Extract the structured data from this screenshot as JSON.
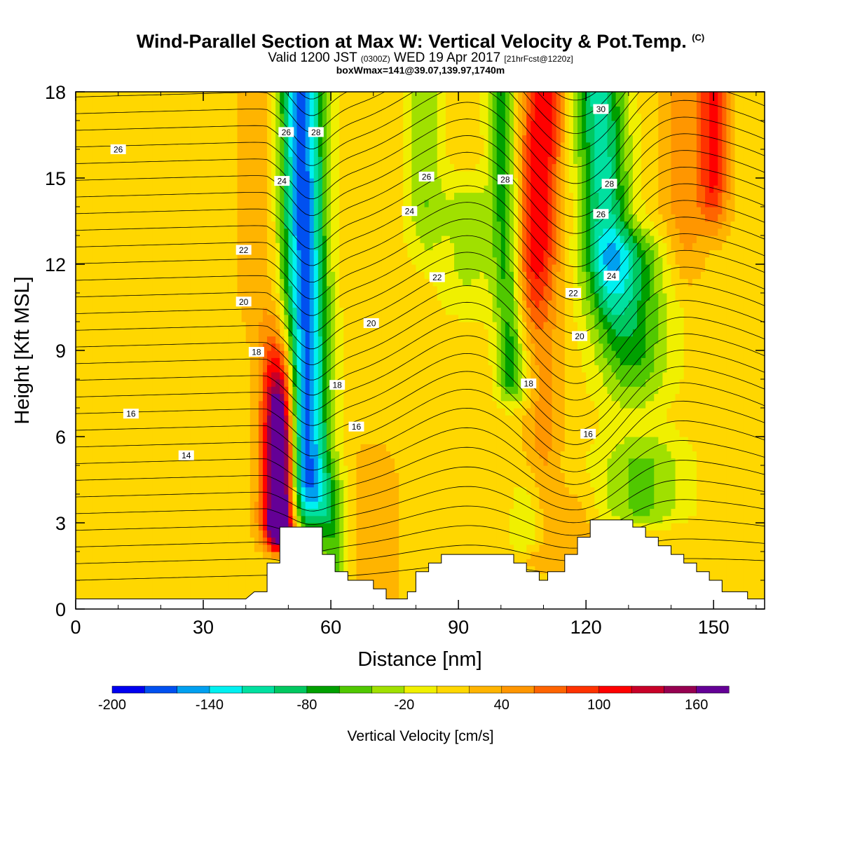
{
  "title": {
    "main": "Wind-Parallel Section at Max W: Vertical Velocity & Pot.Temp.",
    "main_mark": "(C)",
    "sub_a": "Valid 1200 JST",
    "sub_b": "(0300Z)",
    "sub_c": "WED 19 Apr 2017",
    "sub_d": "[21hrFcst@1220z]",
    "sub3": "boxWmax=141@39.07,139.97,1740m"
  },
  "chart_data": {
    "type": "heatmap",
    "xlabel": "Distance [nm]",
    "ylabel": "Height [Kft MSL]",
    "xlim": [
      0,
      162
    ],
    "ylim": [
      0,
      18
    ],
    "xticks": [
      0,
      30,
      60,
      90,
      120,
      150
    ],
    "yticks": [
      0,
      3,
      6,
      9,
      12,
      15,
      18
    ],
    "colorbar": {
      "label": "Vertical Velocity [cm/s]",
      "tick_labels": [
        -200,
        -140,
        -80,
        -20,
        40,
        100,
        160
      ],
      "min": -200,
      "max": 180,
      "step": 20,
      "colors": [
        "#0000f0",
        "#0050f0",
        "#00a0f0",
        "#00f0f0",
        "#00e0a0",
        "#00c860",
        "#00a000",
        "#50c800",
        "#a0e000",
        "#f0f000",
        "#ffd700",
        "#ffb400",
        "#ff9600",
        "#ff6400",
        "#ff3200",
        "#ff0000",
        "#c80028",
        "#960050",
        "#640096"
      ]
    },
    "velocity_features": [
      {
        "type": "downdraft",
        "x_center": 55,
        "x_halfwidth": 4,
        "x_at_top": 53,
        "min": -180
      },
      {
        "type": "updraft",
        "x_center": 48,
        "x_halfwidth": 2.5,
        "z_range": [
          2,
          9
        ],
        "max": 160
      },
      {
        "type": "updraft",
        "x_center": 111,
        "x_halfwidth": 4,
        "z_range": [
          9,
          18
        ],
        "max": 110
      },
      {
        "type": "downdraft",
        "x_center": 124,
        "x_halfwidth": 5,
        "z_range": [
          9,
          18
        ],
        "min": -120
      },
      {
        "type": "downdraft",
        "x_center": 101,
        "x_halfwidth": 2.5,
        "z_range": [
          7,
          18
        ],
        "min": -80
      },
      {
        "type": "updraft",
        "x_center": 150,
        "x_halfwidth": 3,
        "z_range": [
          12,
          18
        ],
        "max": 90
      }
    ],
    "theta_contours": {
      "levels": [
        14,
        16,
        18,
        20,
        22,
        24,
        26,
        28,
        30
      ],
      "labels": [
        {
          "text": "26",
          "x": 10,
          "y": 16.0
        },
        {
          "text": "24",
          "x": 48.5,
          "y": 14.9
        },
        {
          "text": "22",
          "x": 39.5,
          "y": 12.5
        },
        {
          "text": "20",
          "x": 39.5,
          "y": 10.7
        },
        {
          "text": "18",
          "x": 42.5,
          "y": 8.95
        },
        {
          "text": "16",
          "x": 13,
          "y": 6.8
        },
        {
          "text": "14",
          "x": 26,
          "y": 5.35
        },
        {
          "text": "26",
          "x": 49.5,
          "y": 16.6
        },
        {
          "text": "28",
          "x": 56.5,
          "y": 16.6
        },
        {
          "text": "26",
          "x": 82.5,
          "y": 15.05
        },
        {
          "text": "24",
          "x": 78.5,
          "y": 13.85
        },
        {
          "text": "22",
          "x": 85,
          "y": 11.55
        },
        {
          "text": "20",
          "x": 69.5,
          "y": 9.95
        },
        {
          "text": "18",
          "x": 61.5,
          "y": 7.8
        },
        {
          "text": "16",
          "x": 66,
          "y": 6.35
        },
        {
          "text": "28",
          "x": 101,
          "y": 14.95
        },
        {
          "text": "22",
          "x": 117,
          "y": 11.0
        },
        {
          "text": "20",
          "x": 118.5,
          "y": 9.5
        },
        {
          "text": "18",
          "x": 106.5,
          "y": 7.85
        },
        {
          "text": "16",
          "x": 120.5,
          "y": 6.1
        },
        {
          "text": "30",
          "x": 123.5,
          "y": 17.4
        },
        {
          "text": "28",
          "x": 125.5,
          "y": 14.8
        },
        {
          "text": "26",
          "x": 123.5,
          "y": 13.75
        },
        {
          "text": "24",
          "x": 126,
          "y": 11.6
        }
      ]
    },
    "terrain": [
      [
        0,
        0.35
      ],
      [
        40,
        0.35
      ],
      [
        42,
        0.6
      ],
      [
        45,
        0.6
      ],
      [
        45,
        1.6
      ],
      [
        48,
        1.6
      ],
      [
        48,
        2.85
      ],
      [
        58,
        2.85
      ],
      [
        58,
        1.9
      ],
      [
        61,
        1.9
      ],
      [
        61,
        1.3
      ],
      [
        64,
        1.3
      ],
      [
        64,
        1.0
      ],
      [
        70,
        1.0
      ],
      [
        70,
        0.7
      ],
      [
        73,
        0.7
      ],
      [
        73,
        0.35
      ],
      [
        78,
        0.35
      ],
      [
        78,
        0.6
      ],
      [
        80,
        0.6
      ],
      [
        80,
        1.3
      ],
      [
        83,
        1.3
      ],
      [
        83,
        1.6
      ],
      [
        86,
        1.6
      ],
      [
        86,
        1.9
      ],
      [
        103,
        1.9
      ],
      [
        103,
        1.6
      ],
      [
        106,
        1.6
      ],
      [
        106,
        1.3
      ],
      [
        109,
        1.3
      ],
      [
        109,
        1.0
      ],
      [
        111,
        1.0
      ],
      [
        111,
        1.3
      ],
      [
        115,
        1.3
      ],
      [
        115,
        1.9
      ],
      [
        118,
        1.9
      ],
      [
        118,
        2.5
      ],
      [
        121,
        2.5
      ],
      [
        121,
        3.1
      ],
      [
        131,
        3.1
      ],
      [
        131,
        2.85
      ],
      [
        134,
        2.85
      ],
      [
        134,
        2.5
      ],
      [
        137,
        2.5
      ],
      [
        137,
        2.2
      ],
      [
        140,
        2.2
      ],
      [
        140,
        1.9
      ],
      [
        143,
        1.9
      ],
      [
        143,
        1.6
      ],
      [
        146,
        1.6
      ],
      [
        146,
        1.3
      ],
      [
        149,
        1.3
      ],
      [
        149,
        1.0
      ],
      [
        152,
        1.0
      ],
      [
        152,
        0.6
      ],
      [
        158,
        0.6
      ],
      [
        158,
        0.35
      ],
      [
        162,
        0.35
      ]
    ]
  }
}
